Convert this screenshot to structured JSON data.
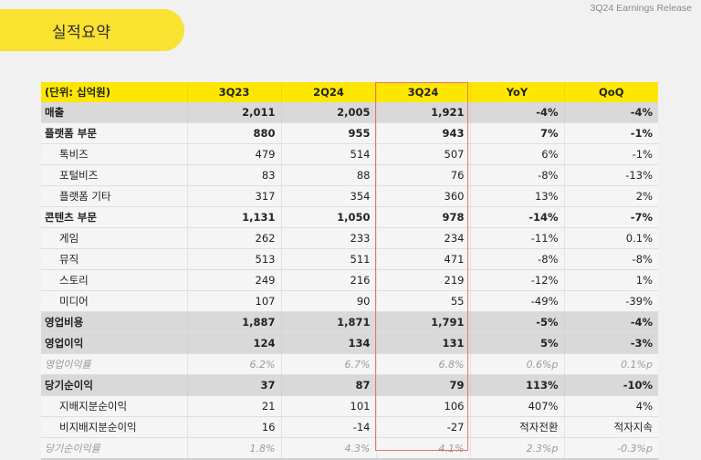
{
  "header": {
    "title": "실적요약",
    "report_label": "3Q24 Earnings Release"
  },
  "table": {
    "columns": [
      "(단위: 십억원)",
      "3Q23",
      "2Q24",
      "3Q24",
      "YoY",
      "QoQ"
    ],
    "highlighted_column": "3Q24",
    "highlight_color": "#e8736a",
    "header_color": "#fde700",
    "rows": [
      {
        "label": "매출",
        "style": "shade",
        "values": [
          "2,011",
          "2,005",
          "1,921",
          "-4%",
          "-4%"
        ]
      },
      {
        "label": "플랫폼 부문",
        "style": "bold",
        "values": [
          "880",
          "955",
          "943",
          "7%",
          "-1%"
        ]
      },
      {
        "label": "톡비즈",
        "style": "sub",
        "values": [
          "479",
          "514",
          "507",
          "6%",
          "-1%"
        ]
      },
      {
        "label": "포털비즈",
        "style": "sub",
        "values": [
          "83",
          "88",
          "76",
          "-8%",
          "-13%"
        ]
      },
      {
        "label": "플랫폼 기타",
        "style": "sub",
        "values": [
          "317",
          "354",
          "360",
          "13%",
          "2%"
        ]
      },
      {
        "label": "콘텐츠 부문",
        "style": "bold",
        "values": [
          "1,131",
          "1,050",
          "978",
          "-14%",
          "-7%"
        ]
      },
      {
        "label": "게임",
        "style": "sub",
        "values": [
          "262",
          "233",
          "234",
          "-11%",
          "0.1%"
        ]
      },
      {
        "label": "뮤직",
        "style": "sub",
        "values": [
          "513",
          "511",
          "471",
          "-8%",
          "-8%"
        ]
      },
      {
        "label": "스토리",
        "style": "sub",
        "values": [
          "249",
          "216",
          "219",
          "-12%",
          "1%"
        ]
      },
      {
        "label": "미디어",
        "style": "sub",
        "values": [
          "107",
          "90",
          "55",
          "-49%",
          "-39%"
        ]
      },
      {
        "label": "영업비용",
        "style": "shade",
        "values": [
          "1,887",
          "1,871",
          "1,791",
          "-5%",
          "-4%"
        ]
      },
      {
        "label": "영업이익",
        "style": "shade",
        "values": [
          "124",
          "134",
          "131",
          "5%",
          "-3%"
        ]
      },
      {
        "label": "영업이익률",
        "style": "ratio",
        "values": [
          "6.2%",
          "6.7%",
          "6.8%",
          "0.6%p",
          "0.1%p"
        ]
      },
      {
        "label": "당기순이익",
        "style": "shade",
        "values": [
          "37",
          "87",
          "79",
          "113%",
          "-10%"
        ]
      },
      {
        "label": "지배지분순이익",
        "style": "sub",
        "values": [
          "21",
          "101",
          "106",
          "407%",
          "4%"
        ]
      },
      {
        "label": "비지배지분순이익",
        "style": "sub",
        "values": [
          "16",
          "-14",
          "-27",
          "적자전환",
          "적자지속"
        ]
      },
      {
        "label": "당기순이익률",
        "style": "ratio",
        "values": [
          "1.8%",
          "4.3%",
          "4.1%",
          "2.3%p",
          "-0.3%p"
        ]
      }
    ]
  }
}
